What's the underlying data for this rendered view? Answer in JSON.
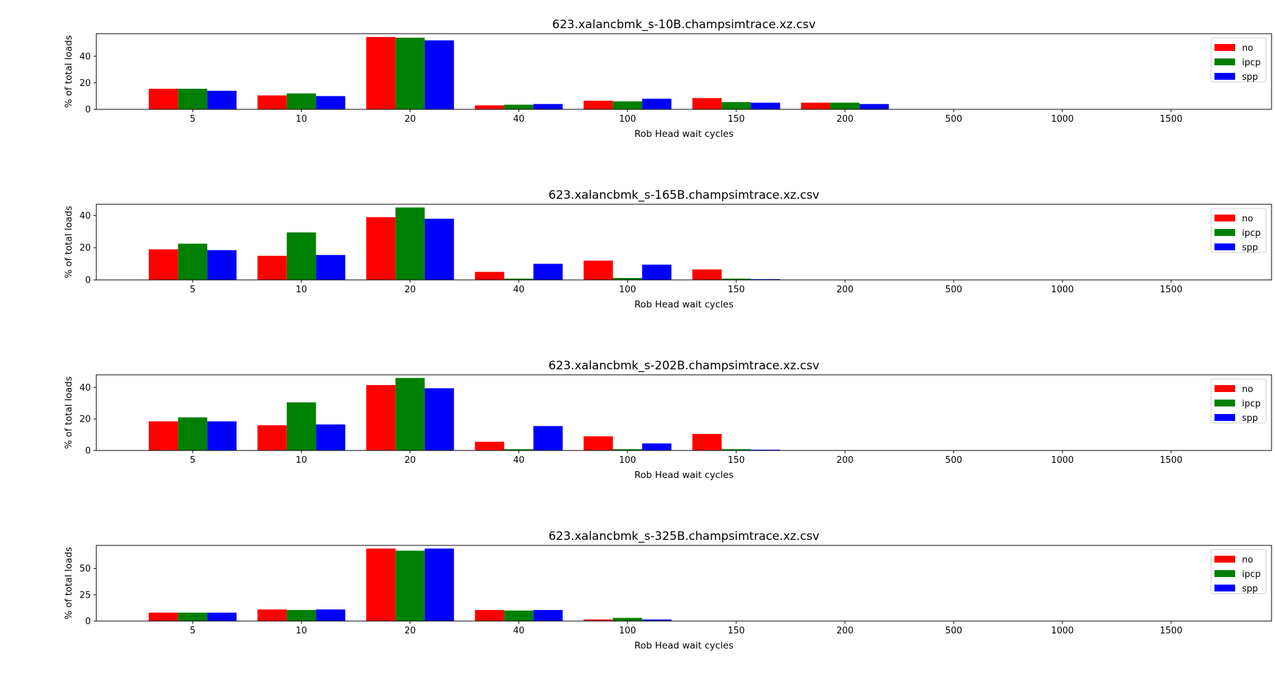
{
  "charts": [
    {
      "type": "bar",
      "title": "623.xalancbmk_s-10B.champsimtrace.xz.csv",
      "xlabel": "Rob Head wait cycles",
      "ylabel": "% of total loads",
      "categories": [
        "5",
        "10",
        "20",
        "40",
        "100",
        "150",
        "200",
        "500",
        "1000",
        "1500"
      ],
      "ylim": [
        0,
        57
      ],
      "yticks": [
        0,
        20,
        40
      ],
      "legend_position": "top-right",
      "series": [
        {
          "name": "no",
          "color": "#ff0000",
          "values": [
            15.5,
            10.5,
            54.5,
            3,
            6.5,
            8.5,
            5,
            0,
            0,
            0
          ]
        },
        {
          "name": "ipcp",
          "color": "#008000",
          "values": [
            15.5,
            12,
            54,
            3.5,
            6,
            5.5,
            5,
            0,
            0,
            0
          ]
        },
        {
          "name": "spp",
          "color": "#0000ff",
          "values": [
            14,
            10,
            52,
            4,
            8,
            5,
            4,
            0,
            0,
            0
          ]
        }
      ]
    },
    {
      "type": "bar",
      "title": "623.xalancbmk_s-165B.champsimtrace.xz.csv",
      "xlabel": "Rob Head wait cycles",
      "ylabel": "% of total loads",
      "categories": [
        "5",
        "10",
        "20",
        "40",
        "100",
        "150",
        "200",
        "500",
        "1000",
        "1500"
      ],
      "ylim": [
        0,
        47
      ],
      "yticks": [
        0,
        20,
        40
      ],
      "legend_position": "top-right",
      "series": [
        {
          "name": "no",
          "color": "#ff0000",
          "values": [
            19,
            15,
            39,
            5,
            12,
            6.5,
            0,
            0,
            0,
            0
          ]
        },
        {
          "name": "ipcp",
          "color": "#008000",
          "values": [
            22.5,
            29.5,
            45,
            0.8,
            1.2,
            0.8,
            0,
            0,
            0,
            0
          ]
        },
        {
          "name": "spp",
          "color": "#0000ff",
          "values": [
            18.5,
            15.5,
            38,
            10,
            9.5,
            0.5,
            0,
            0,
            0,
            0
          ]
        }
      ]
    },
    {
      "type": "bar",
      "title": "623.xalancbmk_s-202B.champsimtrace.xz.csv",
      "xlabel": "Rob Head wait cycles",
      "ylabel": "% of total loads",
      "categories": [
        "5",
        "10",
        "20",
        "40",
        "100",
        "150",
        "200",
        "500",
        "1000",
        "1500"
      ],
      "ylim": [
        0,
        48
      ],
      "yticks": [
        0,
        20,
        40
      ],
      "legend_position": "top-right",
      "series": [
        {
          "name": "no",
          "color": "#ff0000",
          "values": [
            18.5,
            16,
            41.5,
            5.5,
            9,
            10.5,
            0,
            0,
            0,
            0
          ]
        },
        {
          "name": "ipcp",
          "color": "#008000",
          "values": [
            21,
            30.5,
            46,
            0.8,
            0.8,
            0.8,
            0,
            0,
            0,
            0
          ]
        },
        {
          "name": "spp",
          "color": "#0000ff",
          "values": [
            18.5,
            16.5,
            39.5,
            15.5,
            4.5,
            0.5,
            0,
            0,
            0,
            0
          ]
        }
      ]
    },
    {
      "type": "bar",
      "title": "623.xalancbmk_s-325B.champsimtrace.xz.csv",
      "xlabel": "Rob Head wait cycles",
      "ylabel": "% of total loads",
      "categories": [
        "5",
        "10",
        "20",
        "40",
        "100",
        "150",
        "200",
        "500",
        "1000",
        "1500"
      ],
      "ylim": [
        0,
        72
      ],
      "yticks": [
        0,
        25,
        50
      ],
      "legend_position": "top-right",
      "series": [
        {
          "name": "no",
          "color": "#ff0000",
          "values": [
            8,
            11,
            69,
            10.5,
            1.5,
            0,
            0,
            0,
            0,
            0
          ]
        },
        {
          "name": "ipcp",
          "color": "#008000",
          "values": [
            8,
            10.5,
            67,
            10,
            3,
            0,
            0,
            0,
            0,
            0
          ]
        },
        {
          "name": "spp",
          "color": "#0000ff",
          "values": [
            8,
            11,
            69,
            10.5,
            1.5,
            0,
            0,
            0,
            0,
            0
          ]
        }
      ]
    }
  ]
}
